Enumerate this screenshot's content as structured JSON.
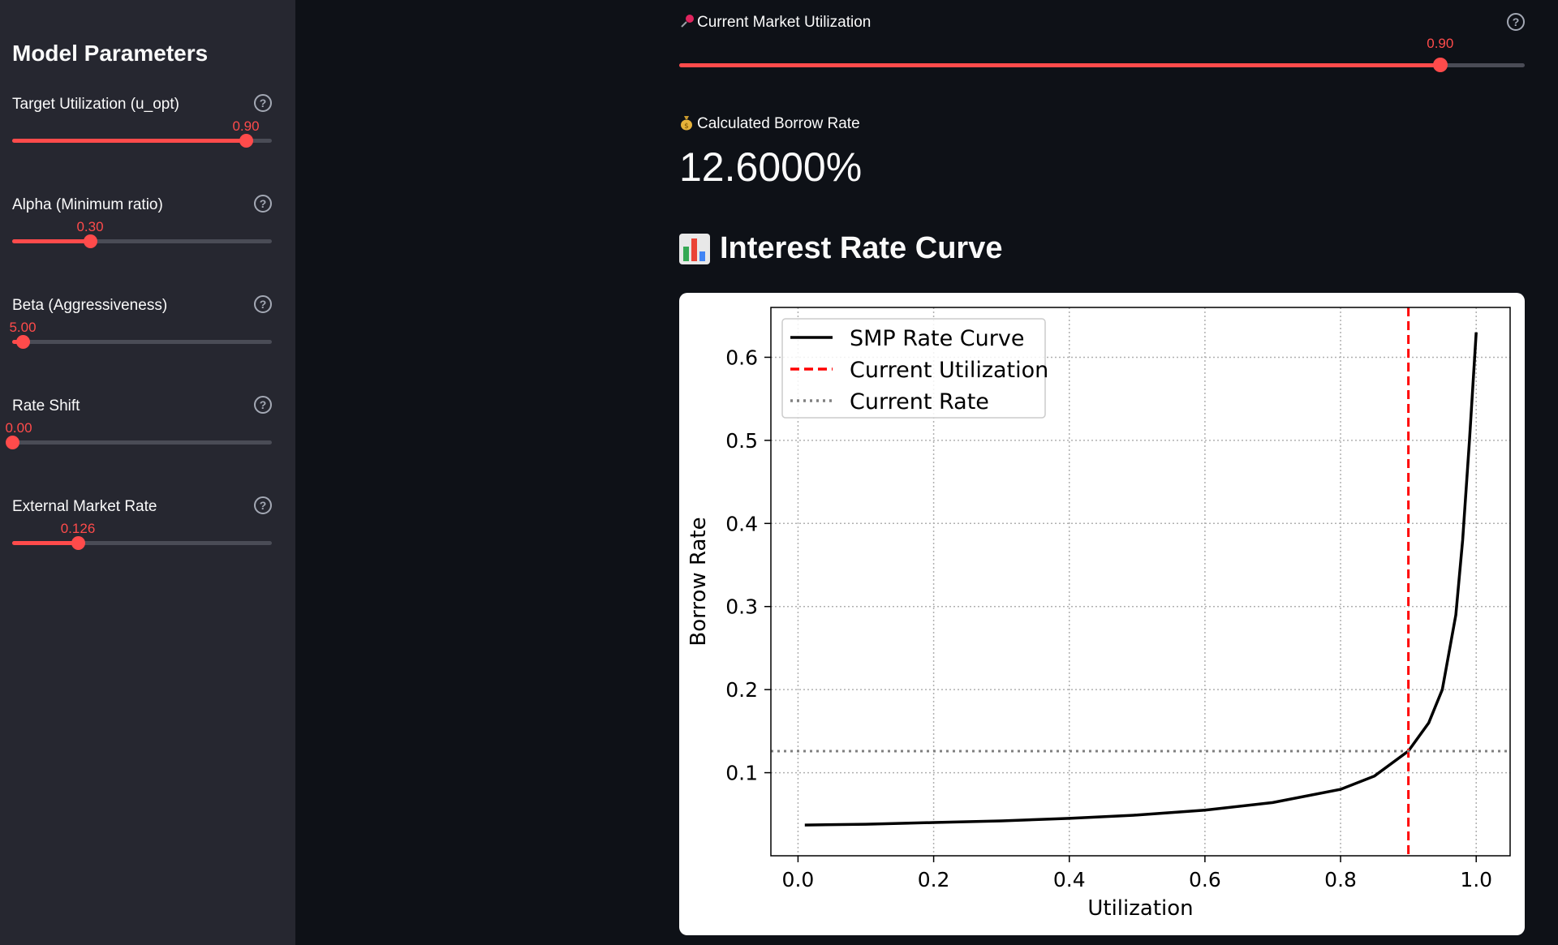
{
  "sidebar": {
    "title": "Model Parameters",
    "params": [
      {
        "label": "Target Utilization (u_opt)",
        "value": "0.90",
        "fraction": 0.9
      },
      {
        "label": "Alpha (Minimum ratio)",
        "value": "0.30",
        "fraction": 0.3
      },
      {
        "label": "Beta (Aggressiveness)",
        "value": "5.00",
        "fraction": 0.04
      },
      {
        "label": "Rate Shift",
        "value": "0.00",
        "fraction": 0.0
      },
      {
        "label": "External Market Rate",
        "value": "0.126",
        "fraction": 0.252
      }
    ]
  },
  "main": {
    "utilization": {
      "icon": "pushpin-icon",
      "label": "Current Market Utilization",
      "value": "0.90",
      "fraction": 0.9
    },
    "borrow_rate": {
      "icon": "money-bag-icon",
      "label": "Calculated Borrow Rate",
      "value": "12.6000%"
    },
    "curve_heading": {
      "icon": "bar-chart-icon",
      "text": "Interest Rate Curve"
    }
  },
  "colors": {
    "accent": "#ff4b4b",
    "background": "#0e1117",
    "sidebar": "#262730"
  },
  "chart_data": {
    "type": "line",
    "title": "",
    "xlabel": "Utilization",
    "ylabel": "Borrow Rate",
    "xlim": [
      -0.04,
      1.05
    ],
    "ylim": [
      0.0,
      0.66
    ],
    "xticks": [
      0.0,
      0.2,
      0.4,
      0.6,
      0.8,
      1.0
    ],
    "yticks": [
      0.1,
      0.2,
      0.3,
      0.4,
      0.5,
      0.6
    ],
    "grid": true,
    "legend": "top-left",
    "series": [
      {
        "name": "SMP Rate Curve",
        "style": "solid",
        "color": "#000000",
        "x": [
          0.01,
          0.1,
          0.2,
          0.3,
          0.4,
          0.5,
          0.6,
          0.7,
          0.8,
          0.85,
          0.9,
          0.93,
          0.95,
          0.97,
          0.98,
          0.99,
          1.0
        ],
        "y": [
          0.037,
          0.038,
          0.04,
          0.042,
          0.045,
          0.049,
          0.055,
          0.064,
          0.08,
          0.096,
          0.126,
          0.16,
          0.2,
          0.29,
          0.38,
          0.5,
          0.63
        ]
      },
      {
        "name": "Current Utilization",
        "style": "dashed",
        "color": "#ff0000",
        "x_value": 0.9
      },
      {
        "name": "Current Rate",
        "style": "dotted",
        "color": "#808080",
        "y_value": 0.126
      }
    ]
  }
}
